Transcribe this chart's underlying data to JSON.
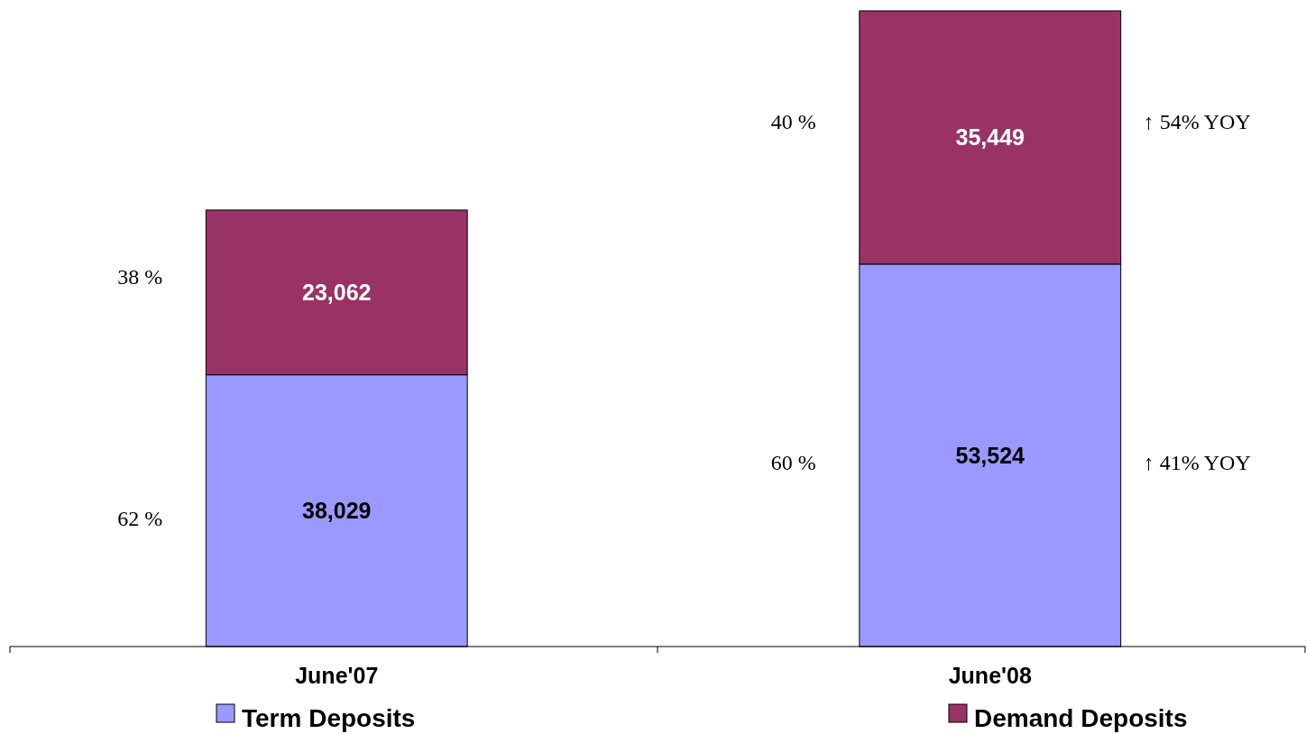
{
  "chart_data": {
    "type": "bar",
    "stacked": true,
    "categories": [
      "June'07",
      "June'08"
    ],
    "series": [
      {
        "name": "Term Deposits",
        "color": "#9999ff",
        "values": [
          38029,
          53524
        ],
        "value_labels": [
          "38,029",
          "53,524"
        ]
      },
      {
        "name": "Demand Deposits",
        "color": "#993366",
        "values": [
          23062,
          35449
        ],
        "value_labels": [
          "23,062",
          "35,449"
        ]
      }
    ],
    "legend": "bottom",
    "annotations": [
      "62 %",
      "38 %",
      "60 %",
      "40 %",
      "↑ 54% YOY",
      "↑ 41% YOY"
    ]
  }
}
